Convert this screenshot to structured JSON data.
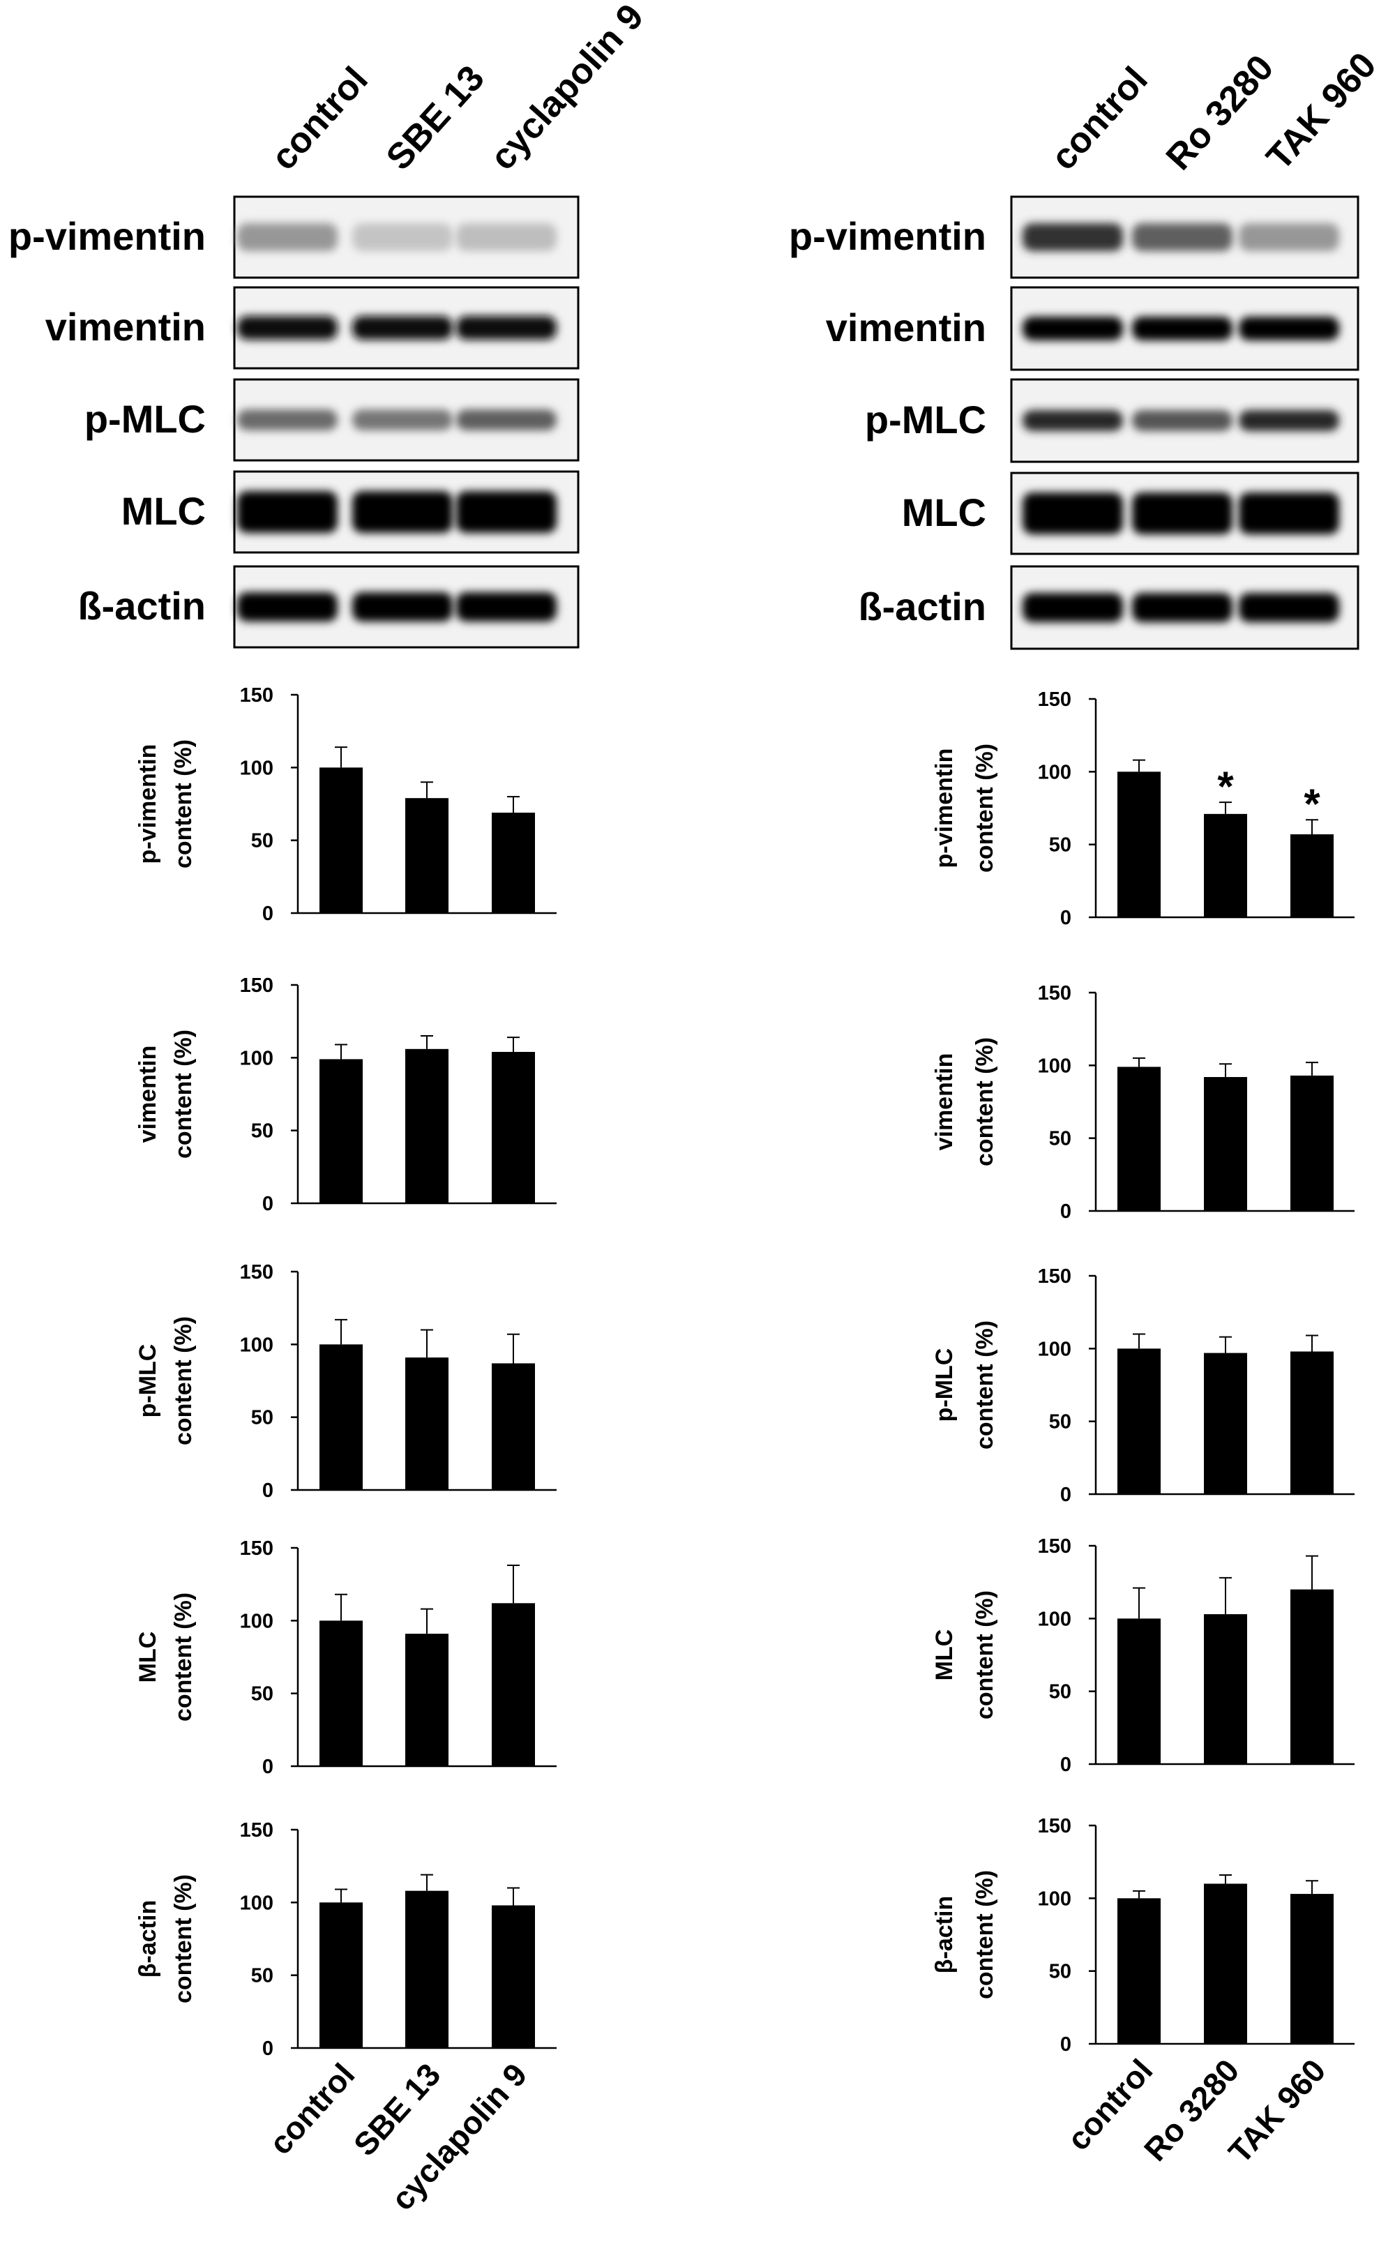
{
  "blots": [
    {
      "lanes": [
        "control",
        "SBE 13",
        "cyclapolin 9"
      ],
      "rows": [
        "p-vimentin",
        "vimentin",
        "p-MLC",
        "MLC",
        "ß-actin"
      ]
    },
    {
      "lanes": [
        "control",
        "Ro 3280",
        "TAK 960"
      ],
      "rows": [
        "p-vimentin",
        "vimentin",
        "p-MLC",
        "MLC",
        "ß-actin"
      ]
    }
  ],
  "chart_data": [
    {
      "type": "bar",
      "ylabel": [
        "p-vimentin",
        "content (%)"
      ],
      "categories": [
        null,
        null,
        null
      ],
      "values": [
        100,
        79,
        69
      ],
      "errors": [
        14,
        11,
        11
      ],
      "color": "#000000",
      "ylim": [
        0,
        150
      ],
      "yticks": [
        0,
        50,
        100,
        150
      ]
    },
    {
      "type": "bar",
      "ylabel": [
        "vimentin",
        "content (%)"
      ],
      "categories": [
        null,
        null,
        null
      ],
      "values": [
        99,
        106,
        104
      ],
      "errors": [
        10,
        9,
        10
      ],
      "color": "#000000",
      "ylim": [
        0,
        150
      ],
      "yticks": [
        0,
        50,
        100,
        150
      ]
    },
    {
      "type": "bar",
      "ylabel": [
        "p-MLC",
        "content (%)"
      ],
      "categories": [
        null,
        null,
        null
      ],
      "values": [
        100,
        91,
        87
      ],
      "errors": [
        17,
        19,
        20
      ],
      "color": "#000000",
      "ylim": [
        0,
        150
      ],
      "yticks": [
        0,
        50,
        100,
        150
      ]
    },
    {
      "type": "bar",
      "ylabel": [
        "MLC",
        "content (%)"
      ],
      "categories": [
        null,
        null,
        null
      ],
      "values": [
        100,
        91,
        112
      ],
      "errors": [
        18,
        17,
        26
      ],
      "color": "#000000",
      "ylim": [
        0,
        150
      ],
      "yticks": [
        0,
        50,
        100,
        150
      ]
    },
    {
      "type": "bar",
      "ylabel": [
        "β-actin",
        "content (%)"
      ],
      "categories": [
        "control",
        "SBE 13",
        "cyclapolin 9"
      ],
      "values": [
        100,
        108,
        98
      ],
      "errors": [
        9,
        11,
        12
      ],
      "color": "#000000",
      "ylim": [
        0,
        150
      ],
      "yticks": [
        0,
        50,
        100,
        150
      ]
    },
    {
      "type": "bar",
      "ylabel": [
        "p-vimentin",
        "content (%)"
      ],
      "categories": [
        null,
        null,
        null
      ],
      "values": [
        100,
        71,
        57
      ],
      "errors": [
        8,
        8,
        10
      ],
      "markers": [
        null,
        "*",
        "*"
      ],
      "color": "#000000",
      "ylim": [
        0,
        150
      ],
      "yticks": [
        0,
        50,
        100,
        150
      ]
    },
    {
      "type": "bar",
      "ylabel": [
        "vimentin",
        "content (%)"
      ],
      "categories": [
        null,
        null,
        null
      ],
      "values": [
        99,
        92,
        93
      ],
      "errors": [
        6,
        9,
        9
      ],
      "color": "#000000",
      "ylim": [
        0,
        150
      ],
      "yticks": [
        0,
        50,
        100,
        150
      ]
    },
    {
      "type": "bar",
      "ylabel": [
        "p-MLC",
        "content (%)"
      ],
      "categories": [
        null,
        null,
        null
      ],
      "values": [
        100,
        97,
        98
      ],
      "errors": [
        10,
        11,
        11
      ],
      "color": "#000000",
      "ylim": [
        0,
        150
      ],
      "yticks": [
        0,
        50,
        100,
        150
      ]
    },
    {
      "type": "bar",
      "ylabel": [
        "MLC",
        "content (%)"
      ],
      "categories": [
        null,
        null,
        null
      ],
      "values": [
        100,
        103,
        120
      ],
      "errors": [
        21,
        25,
        23
      ],
      "color": "#000000",
      "ylim": [
        0,
        150
      ],
      "yticks": [
        0,
        50,
        100,
        150
      ]
    },
    {
      "type": "bar",
      "ylabel": [
        "β-actin",
        "content (%)"
      ],
      "categories": [
        "control",
        "Ro 3280",
        "TAK 960"
      ],
      "values": [
        100,
        110,
        103
      ],
      "errors": [
        5,
        6,
        9
      ],
      "color": "#000000",
      "ylim": [
        0,
        150
      ],
      "yticks": [
        0,
        50,
        100,
        150
      ]
    }
  ]
}
